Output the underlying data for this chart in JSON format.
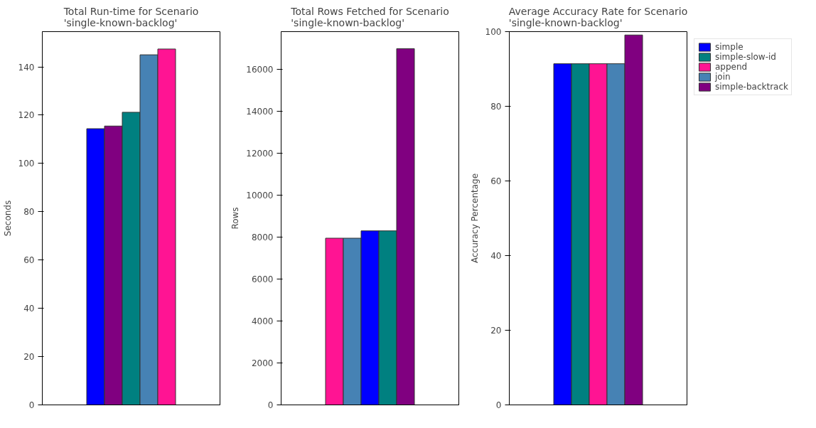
{
  "chart_data": [
    {
      "type": "bar",
      "title": "Total Run-time for Scenario\n'single-known-backlog'",
      "ylabel": "Seconds",
      "categories": [
        null
      ],
      "ylim": [
        0,
        154.6
      ],
      "yticks": [
        0,
        20,
        40,
        60,
        80,
        100,
        120,
        140
      ],
      "grid": false,
      "tick_labels": "y",
      "series": [
        {
          "color": "#0000ff",
          "values": [
            114.4
          ]
        },
        {
          "color": "#800080",
          "values": [
            115.5
          ]
        },
        {
          "color": "#008080",
          "values": [
            121.2
          ]
        },
        {
          "color": "#4682b4",
          "values": [
            145.0
          ]
        },
        {
          "color": "#ff1493",
          "values": [
            147.4
          ]
        }
      ]
    },
    {
      "type": "bar",
      "title": "Total Rows Fetched for Scenario\n'single-known-backlog'",
      "ylabel": "Rows",
      "categories": [
        null
      ],
      "ylim": [
        0,
        17800
      ],
      "yticks": [
        0,
        2000,
        4000,
        6000,
        8000,
        10000,
        12000,
        14000,
        16000
      ],
      "grid": false,
      "tick_labels": "y",
      "series": [
        {
          "color": "#ff1493",
          "values": [
            7950
          ]
        },
        {
          "color": "#4682b4",
          "values": [
            7950
          ]
        },
        {
          "color": "#0000ff",
          "values": [
            8300
          ]
        },
        {
          "color": "#008080",
          "values": [
            8300
          ]
        },
        {
          "color": "#800080",
          "values": [
            16990
          ]
        }
      ]
    },
    {
      "type": "bar",
      "title": "Average Accuracy Rate for Scenario\n'single-known-backlog'",
      "ylabel": "Accuracy Percentage",
      "categories": [
        null
      ],
      "ylim": [
        0,
        100
      ],
      "yticks": [
        0,
        20,
        40,
        60,
        80,
        100
      ],
      "grid": false,
      "tick_labels": "y",
      "legend": "right",
      "series": [
        {
          "name": "simple",
          "color": "#0000ff",
          "values": [
            91.4
          ]
        },
        {
          "name": "simple-slow-id",
          "color": "#008080",
          "values": [
            91.4
          ]
        },
        {
          "name": "append",
          "color": "#ff1493",
          "values": [
            91.4
          ]
        },
        {
          "name": "join",
          "color": "#4682b4",
          "values": [
            91.4
          ]
        },
        {
          "name": "simple-backtrack",
          "color": "#800080",
          "values": [
            99.1
          ]
        }
      ]
    }
  ]
}
